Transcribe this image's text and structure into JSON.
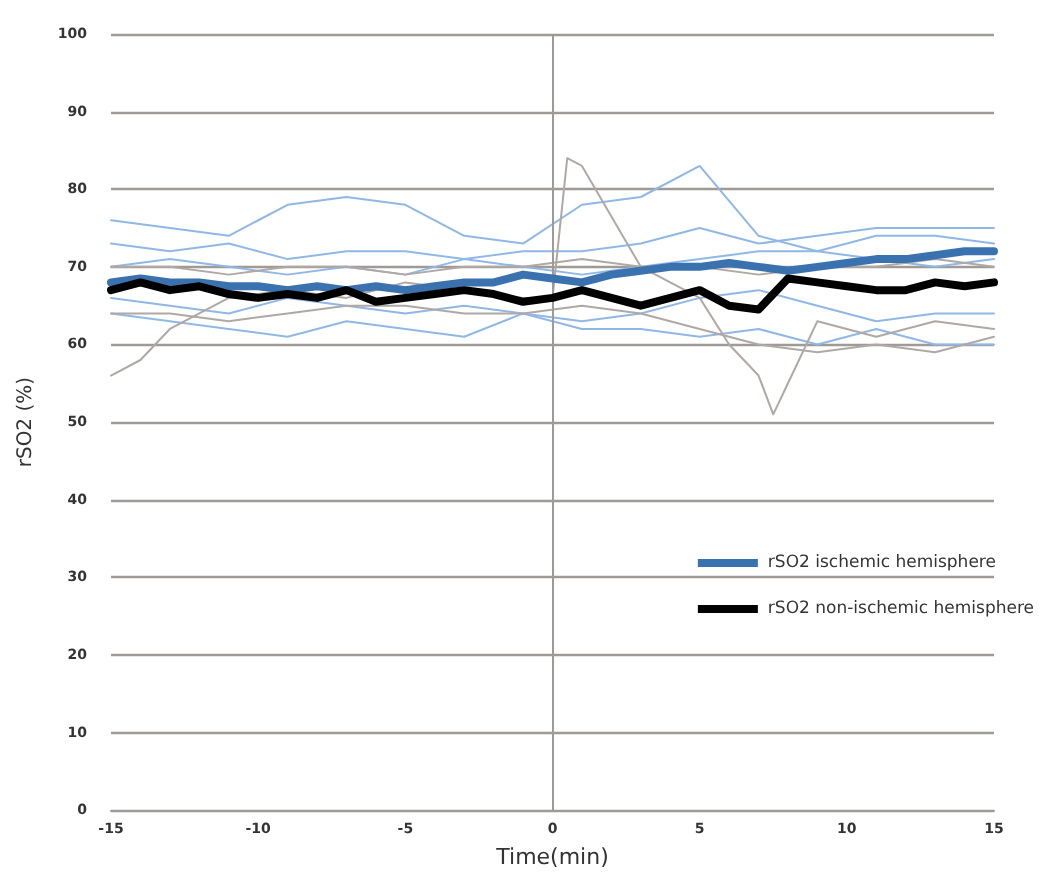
{
  "chart_data": {
    "type": "line",
    "xlabel": "Time(min)",
    "ylabel": "rSO2 (%)",
    "xlim": [
      -15,
      15
    ],
    "xticks": [
      -15,
      -10,
      -5,
      0,
      5,
      10,
      15
    ],
    "ylim": [
      0,
      100
    ],
    "yticks": [
      0,
      10,
      20,
      30,
      40,
      50,
      60,
      70,
      80,
      90,
      100
    ],
    "grid": "y",
    "legend": "right",
    "marker": "none",
    "line_style": "solid",
    "ref_lines": [
      {
        "axis": "x",
        "value": 0,
        "label": null,
        "color": "#a09a96"
      }
    ],
    "series": [
      {
        "name": "rSO2 ischemic hemisphere",
        "color": "#3a72b0",
        "x": [
          -15,
          -14,
          -13,
          -12,
          -11,
          -10,
          -9,
          -8,
          -7,
          -6,
          -5,
          -4,
          -3,
          -2,
          -1,
          0,
          1,
          2,
          3,
          4,
          5,
          6,
          7,
          8,
          9,
          10,
          11,
          12,
          13,
          14,
          15
        ],
        "values": [
          68,
          68.5,
          68,
          68,
          67.5,
          67.5,
          67,
          67.5,
          67,
          67.5,
          67,
          67.5,
          68,
          68,
          69,
          68.5,
          68,
          69,
          69.5,
          70,
          70,
          70.5,
          70,
          69.5,
          70,
          70.5,
          71,
          71,
          71.5,
          72,
          72
        ]
      },
      {
        "name": "rSO2 non-ischemic hemisphere",
        "color": "#000000",
        "x": [
          -15,
          -14,
          -13,
          -12,
          -11,
          -10,
          -9,
          -8,
          -7,
          -6,
          -5,
          -4,
          -3,
          -2,
          -1,
          0,
          1,
          2,
          3,
          4,
          5,
          6,
          7,
          8,
          9,
          10,
          11,
          12,
          13,
          14,
          15
        ],
        "values": [
          67,
          68,
          67,
          67.5,
          66.5,
          66,
          66.5,
          66,
          67,
          65.5,
          66,
          66.5,
          67,
          66.5,
          65.5,
          66,
          67,
          66,
          65,
          66,
          67,
          65,
          64.5,
          68.5,
          68,
          67.5,
          67,
          67,
          68,
          67.5,
          68
        ]
      },
      {
        "color": "#8fb8e6",
        "x": [
          -15,
          -13,
          -11,
          -9,
          -7,
          -5,
          -3,
          -1,
          1,
          3,
          5,
          7,
          9,
          11,
          13,
          15
        ],
        "values": [
          76,
          75,
          74,
          78,
          79,
          78,
          74,
          73,
          78,
          79,
          83,
          74,
          72,
          71,
          70,
          71
        ]
      },
      {
        "color": "#8fb8e6",
        "x": [
          -15,
          -13,
          -11,
          -9,
          -7,
          -5,
          -3,
          -1,
          1,
          3,
          5,
          7,
          9,
          11,
          13,
          15
        ],
        "values": [
          73,
          72,
          73,
          71,
          72,
          72,
          71,
          72,
          72,
          73,
          75,
          73,
          74,
          75,
          75,
          75
        ]
      },
      {
        "color": "#8fb8e6",
        "x": [
          -15,
          -13,
          -11,
          -9,
          -7,
          -5,
          -3,
          -1,
          1,
          3,
          5,
          7,
          9,
          11,
          13,
          15
        ],
        "values": [
          64,
          63,
          62,
          61,
          63,
          62,
          61,
          64,
          62,
          62,
          61,
          62,
          60,
          62,
          60,
          60
        ]
      },
      {
        "color": "#8fb8e6",
        "x": [
          -15,
          -13,
          -11,
          -9,
          -7,
          -5,
          -3,
          -1,
          1,
          3,
          5,
          7,
          9,
          11,
          13,
          15
        ],
        "values": [
          66,
          65,
          64,
          66,
          65,
          64,
          65,
          64,
          63,
          64,
          66,
          67,
          65,
          63,
          64,
          64
        ]
      },
      {
        "color": "#8fb8e6",
        "x": [
          -15,
          -13,
          -11,
          -9,
          -7,
          -5,
          -3,
          -1,
          1,
          3,
          5,
          7,
          9,
          11,
          13,
          15
        ],
        "values": [
          70,
          71,
          70,
          69,
          70,
          69,
          71,
          70,
          69,
          70,
          71,
          72,
          72,
          74,
          74,
          73
        ]
      },
      {
        "color": "#b0a8a4",
        "x": [
          -15,
          -14,
          -13,
          -11,
          -9,
          -7,
          -5,
          -3,
          -1,
          0,
          0.5,
          1,
          3,
          5,
          6,
          7,
          7.5,
          8,
          9,
          11,
          13,
          15
        ],
        "values": [
          56,
          58,
          62,
          66,
          67,
          66,
          68,
          67,
          66,
          66,
          84,
          83,
          70,
          66,
          60,
          56,
          51,
          55,
          63,
          61,
          63,
          62
        ]
      },
      {
        "color": "#b0a8a4",
        "x": [
          -15,
          -13,
          -11,
          -9,
          -7,
          -5,
          -3,
          -1,
          1,
          3,
          5,
          7,
          9,
          11,
          13,
          15
        ],
        "values": [
          70,
          70,
          69,
          70,
          70,
          69,
          70,
          70,
          71,
          70,
          70,
          69,
          70,
          70,
          71,
          70
        ]
      },
      {
        "color": "#b0a8a4",
        "x": [
          -15,
          -13,
          -11,
          -9,
          -7,
          -5,
          -3,
          -1,
          1,
          3,
          5,
          7,
          9,
          11,
          13,
          15
        ],
        "values": [
          64,
          64,
          63,
          64,
          65,
          65,
          64,
          64,
          65,
          64,
          62,
          60,
          59,
          60,
          59,
          61
        ]
      }
    ]
  }
}
